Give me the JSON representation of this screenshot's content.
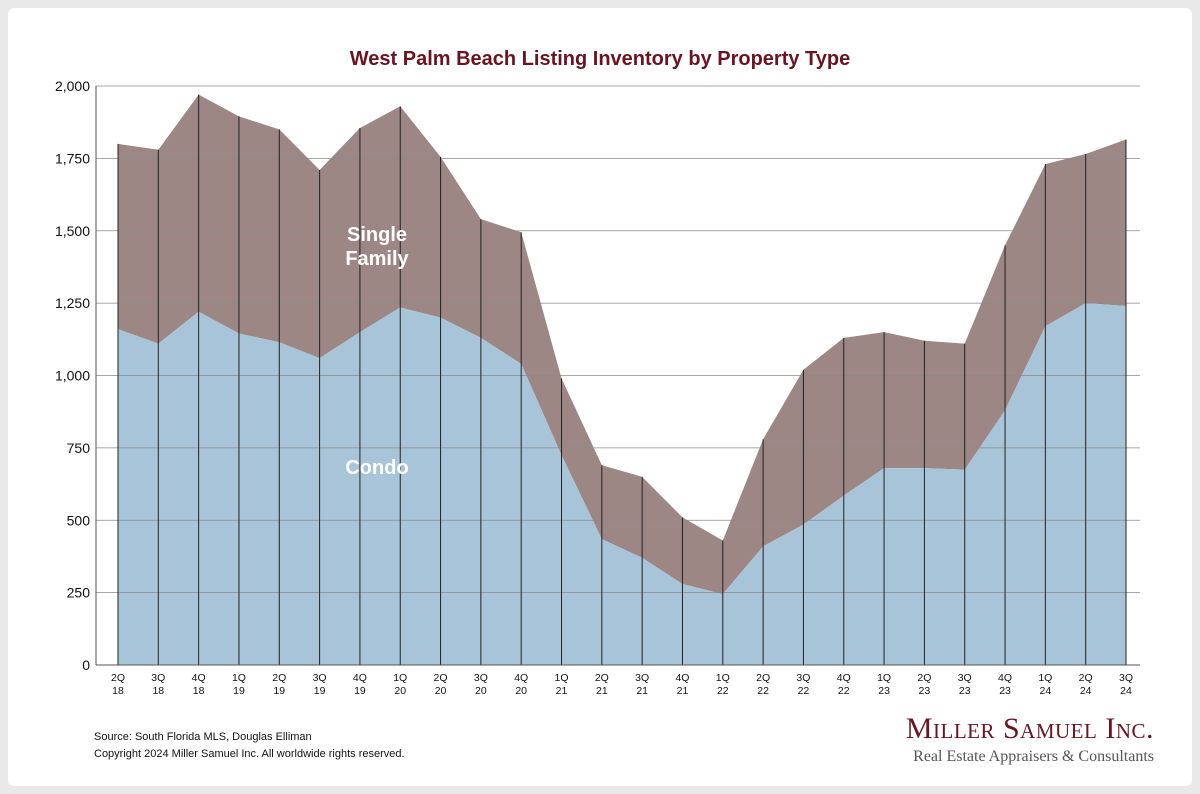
{
  "chart_data": {
    "type": "area",
    "stacked": true,
    "title": "West Palm Beach Listing Inventory by Property Type",
    "xlabel": "",
    "ylabel": "",
    "ylim": [
      0,
      2000
    ],
    "yticks": [
      0,
      250,
      500,
      750,
      1000,
      1250,
      1500,
      1750,
      2000
    ],
    "ytick_labels": [
      "0",
      "250",
      "500",
      "750",
      "1,000",
      "1,250",
      "1,500",
      "1,750",
      "2,000"
    ],
    "grid": true,
    "categories": [
      [
        "2Q",
        "18"
      ],
      [
        "3Q",
        "18"
      ],
      [
        "4Q",
        "18"
      ],
      [
        "1Q",
        "19"
      ],
      [
        "2Q",
        "19"
      ],
      [
        "3Q",
        "19"
      ],
      [
        "4Q",
        "19"
      ],
      [
        "1Q",
        "20"
      ],
      [
        "2Q",
        "20"
      ],
      [
        "3Q",
        "20"
      ],
      [
        "4Q",
        "20"
      ],
      [
        "1Q",
        "21"
      ],
      [
        "2Q",
        "21"
      ],
      [
        "3Q",
        "21"
      ],
      [
        "4Q",
        "21"
      ],
      [
        "1Q",
        "22"
      ],
      [
        "2Q",
        "22"
      ],
      [
        "3Q",
        "22"
      ],
      [
        "4Q",
        "22"
      ],
      [
        "1Q",
        "23"
      ],
      [
        "2Q",
        "23"
      ],
      [
        "3Q",
        "23"
      ],
      [
        "4Q",
        "23"
      ],
      [
        "1Q",
        "24"
      ],
      [
        "2Q",
        "24"
      ],
      [
        "3Q",
        "24"
      ]
    ],
    "series": [
      {
        "name": "Condo",
        "color": "#a8c4d8",
        "values": [
          1160,
          1110,
          1220,
          1145,
          1115,
          1060,
          1150,
          1235,
          1200,
          1130,
          1040,
          725,
          435,
          370,
          280,
          245,
          410,
          485,
          585,
          680,
          680,
          675,
          880,
          1170,
          1250,
          1240
        ]
      },
      {
        "name": "Single Family",
        "color": "#9c8785",
        "values": [
          640,
          670,
          750,
          750,
          735,
          650,
          705,
          695,
          555,
          410,
          455,
          265,
          255,
          280,
          230,
          185,
          370,
          535,
          545,
          470,
          440,
          435,
          570,
          560,
          515,
          575
        ]
      }
    ],
    "labels": {
      "single_family_line1": "Single",
      "single_family_line2": "Family",
      "condo": "Condo"
    }
  },
  "footer": {
    "source": "Source: South Florida MLS, Douglas Elliman",
    "copyright": "Copyright 2024 Miller Samuel Inc.  All worldwide rights reserved."
  },
  "brand": {
    "name": "Miller Samuel Inc.",
    "tagline": "Real Estate Appraisers & Consultants",
    "color": "#6b1420"
  }
}
